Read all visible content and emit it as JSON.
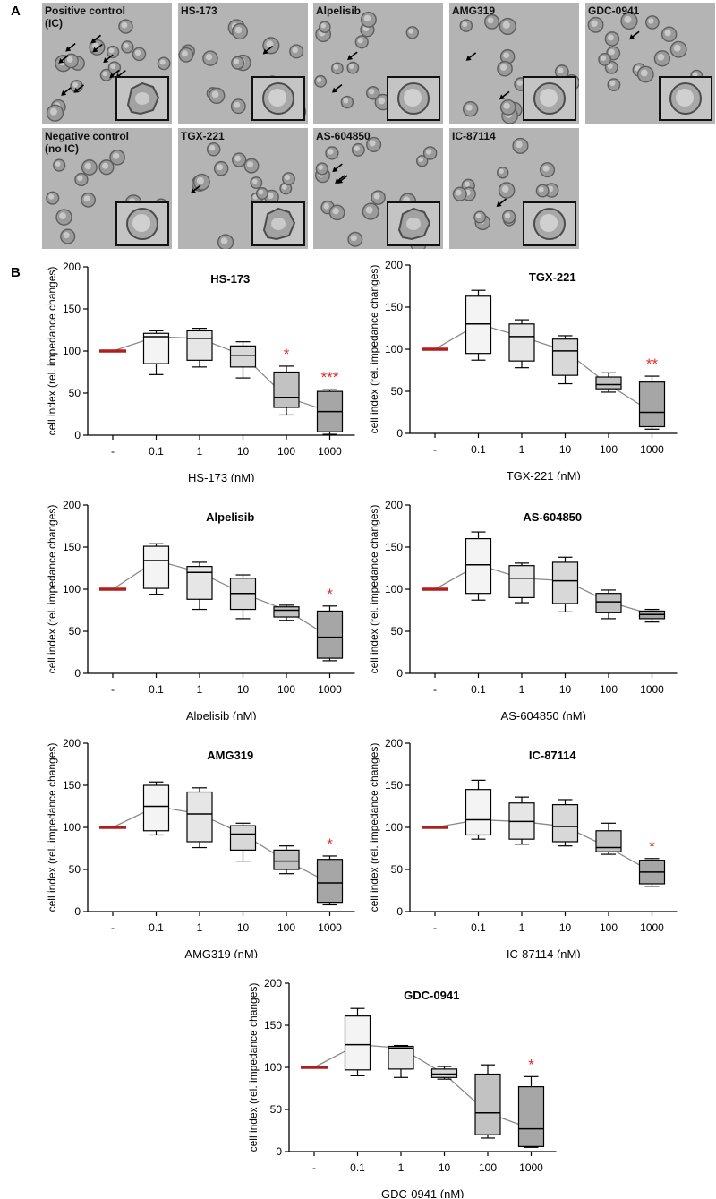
{
  "panel_a": {
    "letter": "A",
    "images": [
      {
        "label_lines": [
          "Positive control",
          "(IC)"
        ],
        "arrows": 9,
        "inset": "irregular"
      },
      {
        "label_lines": [
          "HS-173"
        ],
        "arrows": 1,
        "inset": "round"
      },
      {
        "label_lines": [
          "Alpelisib"
        ],
        "arrows": 2,
        "inset": "round"
      },
      {
        "label_lines": [
          "AMG319"
        ],
        "arrows": 2,
        "inset": "round"
      },
      {
        "label_lines": [
          "GDC-0941"
        ],
        "arrows": 1,
        "inset": "round"
      },
      {
        "label_lines": [
          "Negative control",
          "(no IC)"
        ],
        "arrows": 0,
        "inset": "round"
      },
      {
        "label_lines": [
          "TGX-221"
        ],
        "arrows": 1,
        "inset": "irregular"
      },
      {
        "label_lines": [
          "AS-604850"
        ],
        "arrows": 3,
        "inset": "irregular"
      },
      {
        "label_lines": [
          "IC-87114"
        ],
        "arrows": 1,
        "inset": "round"
      }
    ]
  },
  "panel_b": {
    "letter": "B"
  },
  "colors": {
    "control_line": "#b01e1e",
    "significance": "#e0302a",
    "connector": "#8a8a8a",
    "box_fills": [
      "#f4f4f4",
      "#e6e6e6",
      "#d8d8d8",
      "#c2c2c2",
      "#a6a6a6"
    ]
  },
  "chart_data": [
    {
      "type": "box",
      "title": "HS-173",
      "xlabel": "HS-173 (nM)",
      "ylabel": "cell index (rel. impedance changes)",
      "ylim": [
        0,
        200
      ],
      "yticks": [
        0,
        50,
        100,
        150,
        200
      ],
      "categories": [
        "-",
        "0.1",
        "1",
        "10",
        "100",
        "1000"
      ],
      "control_value": 100,
      "boxes": [
        {
          "min": 72,
          "q1": 85,
          "median": 117,
          "q3": 121,
          "max": 124
        },
        {
          "min": 81,
          "q1": 89,
          "median": 115,
          "q3": 124,
          "max": 127
        },
        {
          "min": 68,
          "q1": 81,
          "median": 95,
          "q3": 106,
          "max": 111
        },
        {
          "min": 24,
          "q1": 33,
          "median": 45,
          "q3": 75,
          "max": 82
        },
        {
          "min": 1,
          "q1": 4,
          "median": 28,
          "q3": 52,
          "max": 54
        }
      ],
      "significance": [
        "",
        "",
        "",
        "*",
        "***"
      ]
    },
    {
      "type": "box",
      "title": "TGX-221",
      "xlabel": "TGX-221 (nM)",
      "ylabel": "cell index (rel. impedance changes)",
      "ylim": [
        0,
        200
      ],
      "yticks": [
        0,
        50,
        100,
        150,
        200
      ],
      "categories": [
        "-",
        "0.1",
        "1",
        "10",
        "100",
        "1000"
      ],
      "control_value": 100,
      "boxes": [
        {
          "min": 87,
          "q1": 95,
          "median": 130,
          "q3": 163,
          "max": 170
        },
        {
          "min": 78,
          "q1": 86,
          "median": 115,
          "q3": 130,
          "max": 135
        },
        {
          "min": 59,
          "q1": 69,
          "median": 98,
          "q3": 112,
          "max": 116
        },
        {
          "min": 49,
          "q1": 53,
          "median": 58,
          "q3": 67,
          "max": 72
        },
        {
          "min": 5,
          "q1": 8,
          "median": 25,
          "q3": 61,
          "max": 68
        }
      ],
      "significance": [
        "",
        "",
        "",
        "",
        "**"
      ]
    },
    {
      "type": "box",
      "title": "Alpelisib",
      "xlabel": "Alpelisib (nM)",
      "ylabel": "cell index (rel. impedance changes)",
      "ylim": [
        0,
        200
      ],
      "yticks": [
        0,
        50,
        100,
        150,
        200
      ],
      "categories": [
        "-",
        "0.1",
        "1",
        "10",
        "100",
        "1000"
      ],
      "control_value": 100,
      "boxes": [
        {
          "min": 94,
          "q1": 101,
          "median": 134,
          "q3": 151,
          "max": 154
        },
        {
          "min": 76,
          "q1": 88,
          "median": 120,
          "q3": 127,
          "max": 132
        },
        {
          "min": 65,
          "q1": 76,
          "median": 95,
          "q3": 113,
          "max": 117
        },
        {
          "min": 63,
          "q1": 67,
          "median": 75,
          "q3": 79,
          "max": 81
        },
        {
          "min": 15,
          "q1": 18,
          "median": 43,
          "q3": 74,
          "max": 80
        }
      ],
      "significance": [
        "",
        "",
        "",
        "",
        "*"
      ]
    },
    {
      "type": "box",
      "title": "AS-604850",
      "xlabel": "AS-604850 (nM)",
      "ylabel": "cell index (rel. impedance changes)",
      "ylim": [
        0,
        200
      ],
      "yticks": [
        0,
        50,
        100,
        150,
        200
      ],
      "categories": [
        "-",
        "0.1",
        "1",
        "10",
        "100",
        "1000"
      ],
      "control_value": 100,
      "boxes": [
        {
          "min": 87,
          "q1": 95,
          "median": 129,
          "q3": 160,
          "max": 168
        },
        {
          "min": 84,
          "q1": 90,
          "median": 113,
          "q3": 128,
          "max": 131
        },
        {
          "min": 73,
          "q1": 83,
          "median": 110,
          "q3": 132,
          "max": 138
        },
        {
          "min": 65,
          "q1": 72,
          "median": 85,
          "q3": 95,
          "max": 99
        },
        {
          "min": 61,
          "q1": 65,
          "median": 70,
          "q3": 74,
          "max": 76
        }
      ],
      "significance": [
        "",
        "",
        "",
        "",
        ""
      ]
    },
    {
      "type": "box",
      "title": "AMG319",
      "xlabel": "AMG319 (nM)",
      "ylabel": "cell index (rel. impedance changes)",
      "ylim": [
        0,
        200
      ],
      "yticks": [
        0,
        50,
        100,
        150,
        200
      ],
      "categories": [
        "-",
        "0.1",
        "1",
        "10",
        "100",
        "1000"
      ],
      "control_value": 100,
      "boxes": [
        {
          "min": 91,
          "q1": 96,
          "median": 125,
          "q3": 150,
          "max": 154
        },
        {
          "min": 76,
          "q1": 83,
          "median": 116,
          "q3": 142,
          "max": 147
        },
        {
          "min": 60,
          "q1": 73,
          "median": 92,
          "q3": 102,
          "max": 105
        },
        {
          "min": 45,
          "q1": 50,
          "median": 60,
          "q3": 73,
          "max": 78
        },
        {
          "min": 8,
          "q1": 11,
          "median": 34,
          "q3": 62,
          "max": 66
        }
      ],
      "significance": [
        "",
        "",
        "",
        "",
        "*"
      ]
    },
    {
      "type": "box",
      "title": "IC-87114",
      "xlabel": "IC-87114 (nM)",
      "ylabel": "cell index (rel. impedance changes)",
      "ylim": [
        0,
        200
      ],
      "yticks": [
        0,
        50,
        100,
        150,
        200
      ],
      "categories": [
        "-",
        "0.1",
        "1",
        "10",
        "100",
        "1000"
      ],
      "control_value": 100,
      "boxes": [
        {
          "min": 86,
          "q1": 91,
          "median": 109,
          "q3": 145,
          "max": 156
        },
        {
          "min": 80,
          "q1": 86,
          "median": 107,
          "q3": 129,
          "max": 136
        },
        {
          "min": 78,
          "q1": 83,
          "median": 101,
          "q3": 127,
          "max": 133
        },
        {
          "min": 68,
          "q1": 71,
          "median": 76,
          "q3": 96,
          "max": 105
        },
        {
          "min": 30,
          "q1": 33,
          "median": 47,
          "q3": 61,
          "max": 63
        }
      ],
      "significance": [
        "",
        "",
        "",
        "",
        "*"
      ]
    },
    {
      "type": "box",
      "title": "GDC-0941",
      "xlabel": "GDC-0941 (nM)",
      "ylabel": "cell index (rel. impedance changes)",
      "ylim": [
        0,
        200
      ],
      "yticks": [
        0,
        50,
        100,
        150,
        200
      ],
      "categories": [
        "-",
        "0.1",
        "1",
        "10",
        "100",
        "1000"
      ],
      "control_value": 100,
      "boxes": [
        {
          "min": 90,
          "q1": 97,
          "median": 127,
          "q3": 161,
          "max": 170
        },
        {
          "min": 88,
          "q1": 98,
          "median": 123,
          "q3": 125,
          "max": 126
        },
        {
          "min": 86,
          "q1": 88,
          "median": 92,
          "q3": 98,
          "max": 101
        },
        {
          "min": 16,
          "q1": 20,
          "median": 46,
          "q3": 92,
          "max": 103
        },
        {
          "min": 5,
          "q1": 6,
          "median": 27,
          "q3": 77,
          "max": 89
        }
      ],
      "significance": [
        "",
        "",
        "",
        "",
        "*"
      ]
    }
  ]
}
